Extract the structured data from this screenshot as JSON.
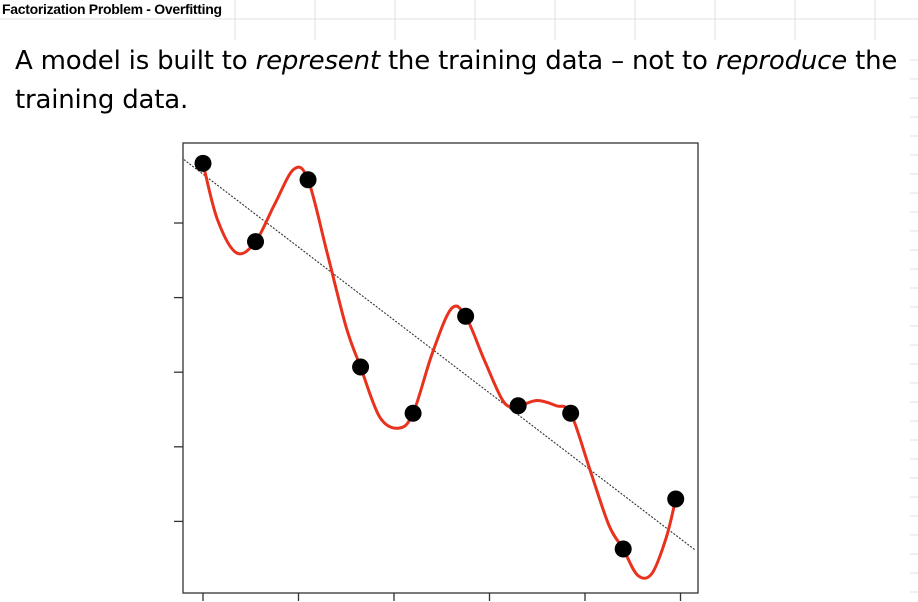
{
  "slide": {
    "title": "Factorization Problem - Overfitting",
    "statement": [
      {
        "text": "A model is built to ",
        "italic": false
      },
      {
        "text": "represent",
        "italic": true
      },
      {
        "text": " the training data – not to ",
        "italic": false
      },
      {
        "text": "reproduce",
        "italic": true
      },
      {
        "text": " the training data.",
        "italic": false
      }
    ]
  },
  "colors": {
    "curve": "#e8321e",
    "trend": "#333333",
    "points": "#000000",
    "frame": "#333333",
    "grid": "#e2e2e2"
  },
  "chart_data": {
    "type": "scatter",
    "title": "",
    "xlabel": "",
    "ylabel": "",
    "grid": false,
    "xlim": [
      0,
      5.3
    ],
    "ylim": [
      0,
      5.5
    ],
    "x_ticks": [
      0,
      1,
      2,
      3,
      4,
      5
    ],
    "y_ticks": [
      1,
      2,
      3,
      4,
      5
    ],
    "points": {
      "x": [
        0,
        0.55,
        1.1,
        1.65,
        2.2,
        2.75,
        3.3,
        3.85,
        4.4,
        4.95
      ],
      "y": [
        5.8,
        4.75,
        5.58,
        3.07,
        2.45,
        3.75,
        2.55,
        2.45,
        0.63,
        1.3
      ]
    },
    "overfit_curve": {
      "name": "",
      "x": [
        0,
        0.15,
        0.35,
        0.55,
        0.75,
        0.95,
        1.1,
        1.3,
        1.5,
        1.65,
        1.85,
        2.05,
        2.2,
        2.4,
        2.6,
        2.75,
        2.95,
        3.15,
        3.3,
        3.5,
        3.7,
        3.85,
        4.05,
        4.25,
        4.4,
        4.55,
        4.7,
        4.85,
        4.95
      ],
      "y": [
        5.8,
        5.05,
        4.6,
        4.75,
        5.25,
        5.72,
        5.58,
        4.6,
        3.6,
        3.07,
        2.4,
        2.25,
        2.45,
        3.25,
        3.85,
        3.75,
        3.15,
        2.6,
        2.55,
        2.62,
        2.55,
        2.45,
        1.7,
        0.95,
        0.63,
        0.28,
        0.3,
        0.78,
        1.3
      ]
    },
    "trend_line": {
      "name": "",
      "x": [
        -0.2,
        5.15
      ],
      "y": [
        5.85,
        0.62
      ]
    }
  }
}
